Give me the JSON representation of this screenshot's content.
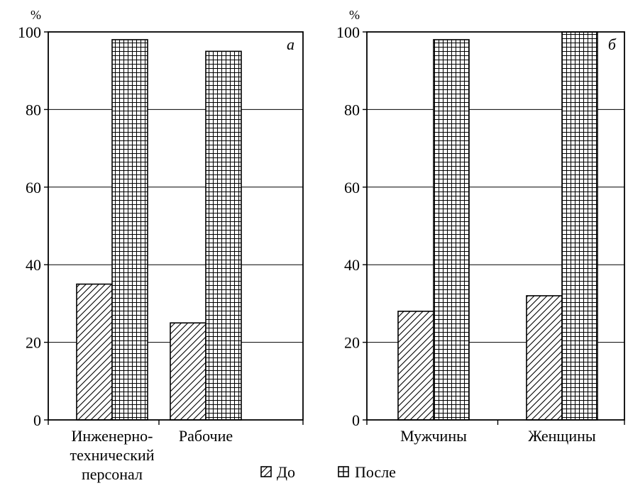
{
  "legend": {
    "items": [
      {
        "label": "До",
        "pattern": "hatch",
        "icon": "diagonal-hatch-square"
      },
      {
        "label": "После",
        "pattern": "grid",
        "icon": "grid-square"
      }
    ]
  },
  "chart_data": [
    {
      "type": "bar",
      "panel_label": "а",
      "unit": "%",
      "ylim": [
        0,
        100
      ],
      "yticks": [
        "0",
        "20",
        "40",
        "60",
        "80",
        "100"
      ],
      "grid": true,
      "categories": [
        "Инженерно-техни­ческий персонал",
        "Рабочие"
      ],
      "category_lines": [
        [
          "Инженерно-",
          "технический",
          "персонал"
        ],
        [
          "Рабочие"
        ]
      ],
      "series": [
        {
          "name": "До",
          "values": [
            35,
            25
          ]
        },
        {
          "name": "После",
          "values": [
            98,
            95
          ]
        }
      ]
    },
    {
      "type": "bar",
      "panel_label": "б",
      "unit": "%",
      "ylim": [
        0,
        100
      ],
      "yticks": [
        "0",
        "20",
        "40",
        "60",
        "80",
        "100"
      ],
      "grid": true,
      "categories": [
        "Мужчины",
        "Женщины"
      ],
      "category_lines": [
        [
          "Мужчины"
        ],
        [
          "Женщины"
        ]
      ],
      "series": [
        {
          "name": "До",
          "values": [
            28,
            32
          ]
        },
        {
          "name": "После",
          "values": [
            98,
            100
          ]
        }
      ]
    }
  ]
}
